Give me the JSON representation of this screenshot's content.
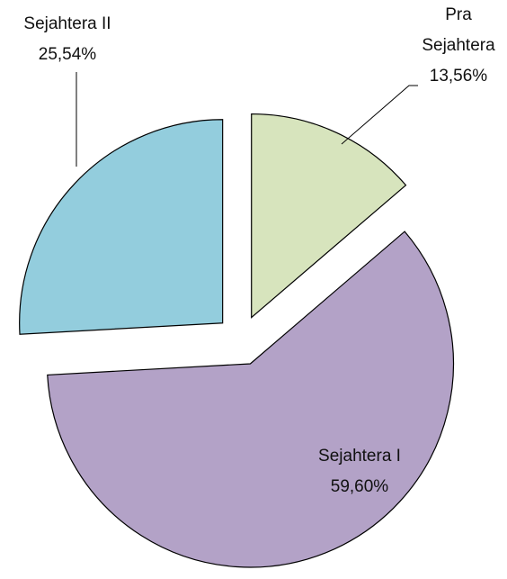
{
  "chart_data": {
    "type": "pie",
    "categories": [
      "Pra Sejahtera",
      "Sejahtera I",
      "Sejahtera II"
    ],
    "values": [
      13.56,
      59.6,
      25.54
    ],
    "value_labels": [
      "13,56%",
      "59,60%",
      "25,54%"
    ],
    "colors": [
      "#d7e4bd",
      "#b3a2c7",
      "#93cddd"
    ]
  }
}
